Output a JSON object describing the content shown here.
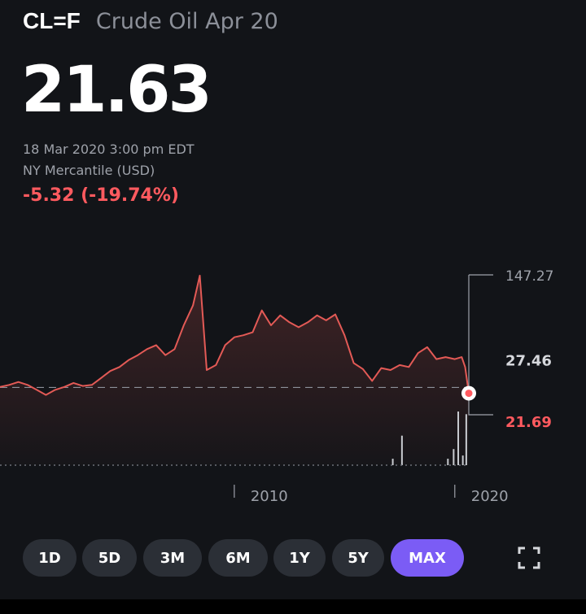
{
  "header": {
    "symbol": "CL=F",
    "name": "Crude Oil Apr 20"
  },
  "quote": {
    "price": "21.63",
    "timestamp": "18 Mar 2020 3:00 pm EDT",
    "exchange": "NY Mercantile (USD)",
    "change": "-5.32 (-19.74%)"
  },
  "ranges": [
    "1D",
    "5D",
    "3M",
    "6M",
    "1Y",
    "5Y",
    "MAX"
  ],
  "active_range": "MAX",
  "colors": {
    "line": "#e35a56",
    "negative": "#ff5a5f",
    "accent": "#7b5cf5",
    "background": "#121418",
    "button": "#2b2f36"
  },
  "icons": {
    "fullscreen": "fullscreen-icon"
  },
  "chart_data": {
    "type": "area",
    "x_tick_labels": [
      "2010",
      "2020"
    ],
    "x_ticks": [
      2010,
      2019.6
    ],
    "xlim": [
      1999.8,
      2020.21
    ],
    "ylim": [
      0,
      147.27
    ],
    "reference_line": 27.46,
    "reference_label": "27.46",
    "high_label": "147.27",
    "low_label": "21.69",
    "last_value": 21.63,
    "series": [
      {
        "x": [
          1999.8,
          2000.2,
          2000.6,
          2001.0,
          2001.4,
          2001.8,
          2002.2,
          2002.6,
          2003.0,
          2003.4,
          2003.8,
          2004.2,
          2004.6,
          2005.0,
          2005.4,
          2005.8,
          2006.2,
          2006.6,
          2007.0,
          2007.4,
          2007.8,
          2008.2,
          2008.5,
          2008.8,
          2009.2,
          2009.6,
          2010.0,
          2010.4,
          2010.8,
          2011.2,
          2011.6,
          2012.0,
          2012.4,
          2012.8,
          2013.2,
          2013.6,
          2014.0,
          2014.4,
          2014.8,
          2015.2,
          2015.6,
          2016.0,
          2016.4,
          2016.8,
          2017.2,
          2017.6,
          2018.0,
          2018.4,
          2018.8,
          2019.2,
          2019.6,
          2019.9,
          2020.05,
          2020.21
        ],
        "y": [
          28,
          30,
          33,
          30,
          25,
          20,
          25,
          28,
          32,
          29,
          30,
          37,
          44,
          48,
          55,
          60,
          66,
          70,
          60,
          66,
          90,
          110,
          140,
          45,
          50,
          70,
          78,
          80,
          83,
          105,
          90,
          100,
          93,
          88,
          93,
          100,
          95,
          101,
          80,
          52,
          46,
          34,
          47,
          45,
          50,
          48,
          62,
          68,
          56,
          58,
          56,
          58,
          48,
          21.63
        ]
      }
    ],
    "volume": {
      "x": [
        2016.9,
        2017.3,
        2019.3,
        2019.55,
        2019.75,
        2019.95,
        2020.1
      ],
      "values": [
        0.12,
        0.55,
        0.12,
        0.3,
        1.0,
        0.18,
        0.95
      ]
    }
  }
}
